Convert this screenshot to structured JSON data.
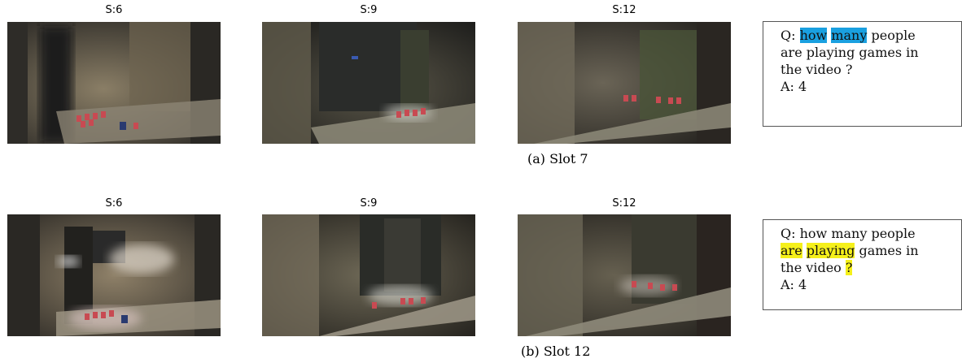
{
  "panel_a": {
    "frames": [
      {
        "label": "S:6"
      },
      {
        "label": "S:9"
      },
      {
        "label": "S:12"
      }
    ],
    "caption": "(a)  Slot 7",
    "qa": {
      "q_prefix": "Q:",
      "q_segments_line1": [
        {
          "text": "how",
          "highlight": "blue"
        },
        {
          "text": "many",
          "highlight": "blue"
        },
        {
          "text": "people",
          "highlight": null
        }
      ],
      "line2": "are playing games in",
      "line3": "the video ?",
      "answer": "A: 4"
    }
  },
  "panel_b": {
    "frames": [
      {
        "label": "S:6"
      },
      {
        "label": "S:9"
      },
      {
        "label": "S:12"
      }
    ],
    "caption": "(b)  Slot 12",
    "qa": {
      "line1": "Q: how many people",
      "line2_segments": [
        {
          "text": "are",
          "highlight": "yellow"
        },
        {
          "text": "playing",
          "highlight": "yellow"
        },
        {
          "text": "games in",
          "highlight": null
        }
      ],
      "line3_prefix": "the video",
      "line3_mark": "?",
      "answer": "A: 4"
    }
  },
  "colors": {
    "highlight_blue": "#1aa0e0",
    "highlight_yellow": "#f5f01a"
  }
}
